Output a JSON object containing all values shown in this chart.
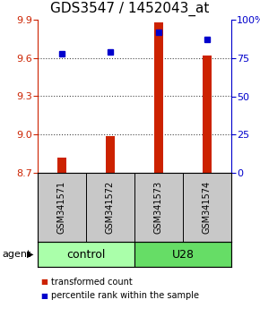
{
  "title": "GDS3547 / 1452043_at",
  "samples": [
    "GSM341571",
    "GSM341572",
    "GSM341573",
    "GSM341574"
  ],
  "bar_values": [
    8.82,
    8.99,
    9.88,
    9.62
  ],
  "percentile_values": [
    78,
    79,
    92,
    87
  ],
  "ylim_left": [
    8.7,
    9.9
  ],
  "ylim_right": [
    0,
    100
  ],
  "yticks_left": [
    8.7,
    9.0,
    9.3,
    9.6,
    9.9
  ],
  "yticks_right": [
    0,
    25,
    50,
    75,
    100
  ],
  "ytick_labels_right": [
    "0",
    "25",
    "50",
    "75",
    "100%"
  ],
  "hlines": [
    9.0,
    9.3,
    9.6
  ],
  "bar_color": "#CC2200",
  "dot_color": "#0000CC",
  "bar_width": 0.18,
  "left_tick_color": "#CC2200",
  "right_tick_color": "#0000CC",
  "legend_items": [
    {
      "color": "#CC2200",
      "label": "transformed count"
    },
    {
      "color": "#0000CC",
      "label": "percentile rank within the sample"
    }
  ],
  "agent_label": "agent",
  "background_color": "#ffffff",
  "sample_box_color": "#c8c8c8",
  "group_colors": [
    "#aaffaa",
    "#66dd66"
  ],
  "group_labels": [
    "control",
    "U28"
  ],
  "grid_color": "#444444",
  "title_fontsize": 11,
  "tick_fontsize": 8,
  "sample_fontsize": 7,
  "group_fontsize": 9,
  "legend_fontsize": 7
}
